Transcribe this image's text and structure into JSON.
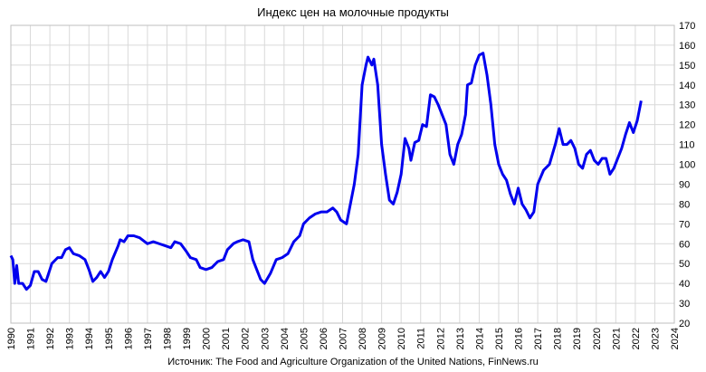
{
  "chart_data": {
    "type": "line",
    "title": "Индекс цен на молочные продукты",
    "source": "Источник: The Food and Agriculture Organization of the United Nations, FinNews.ru",
    "x": [
      1990.0,
      1990.1,
      1990.2,
      1990.3,
      1990.4,
      1990.6,
      1990.8,
      1991.0,
      1991.2,
      1991.4,
      1991.6,
      1991.8,
      1991.9,
      1992.1,
      1992.4,
      1992.6,
      1992.8,
      1993.0,
      1993.2,
      1993.5,
      1993.8,
      1994.0,
      1994.2,
      1994.4,
      1994.6,
      1994.8,
      1995.0,
      1995.2,
      1995.5,
      1995.6,
      1995.8,
      1996.0,
      1996.3,
      1996.6,
      1997.0,
      1997.3,
      1997.6,
      1997.9,
      1998.2,
      1998.4,
      1998.7,
      1999.0,
      1999.2,
      1999.5,
      1999.7,
      2000.0,
      2000.3,
      2000.6,
      2000.9,
      2001.1,
      2001.4,
      2001.6,
      2001.9,
      2002.2,
      2002.4,
      2002.6,
      2002.8,
      2003.0,
      2003.3,
      2003.6,
      2003.9,
      2004.2,
      2004.5,
      2004.8,
      2005.0,
      2005.3,
      2005.6,
      2005.9,
      2006.2,
      2006.5,
      2006.7,
      2006.9,
      2007.2,
      2007.4,
      2007.6,
      2007.8,
      2008.0,
      2008.2,
      2008.3,
      2008.5,
      2008.6,
      2008.8,
      2009.0,
      2009.2,
      2009.4,
      2009.6,
      2009.8,
      2010.0,
      2010.2,
      2010.4,
      2010.5,
      2010.7,
      2010.9,
      2011.1,
      2011.3,
      2011.5,
      2011.7,
      2011.9,
      2012.1,
      2012.3,
      2012.5,
      2012.7,
      2012.9,
      2013.1,
      2013.3,
      2013.4,
      2013.6,
      2013.8,
      2014.0,
      2014.2,
      2014.4,
      2014.6,
      2014.8,
      2015.0,
      2015.2,
      2015.4,
      2015.6,
      2015.8,
      2016.0,
      2016.2,
      2016.4,
      2016.6,
      2016.8,
      2017.0,
      2017.3,
      2017.6,
      2017.9,
      2018.1,
      2018.3,
      2018.5,
      2018.7,
      2018.9,
      2019.1,
      2019.3,
      2019.5,
      2019.7,
      2019.9,
      2020.1,
      2020.3,
      2020.5,
      2020.7,
      2020.9,
      2021.1,
      2021.3,
      2021.5,
      2021.7,
      2021.9,
      2022.1,
      2022.3
    ],
    "series": [
      {
        "name": "Индекс",
        "color": "#0000ee",
        "values": [
          54,
          52,
          40,
          49,
          40,
          40,
          37,
          39,
          46,
          46,
          42,
          41,
          44,
          50,
          53,
          53,
          57,
          58,
          55,
          54,
          52,
          47,
          41,
          43,
          46,
          43,
          46,
          52,
          59,
          62,
          61,
          64,
          64,
          63,
          60,
          61,
          60,
          59,
          58,
          61,
          60,
          56,
          53,
          52,
          48,
          47,
          48,
          51,
          52,
          57,
          60,
          61,
          62,
          61,
          52,
          47,
          42,
          40,
          45,
          52,
          53,
          55,
          61,
          64,
          70,
          73,
          75,
          76,
          76,
          78,
          76,
          72,
          70,
          80,
          90,
          105,
          140,
          150,
          154,
          150,
          153,
          140,
          110,
          95,
          82,
          80,
          86,
          95,
          113,
          108,
          102,
          111,
          112,
          120,
          119,
          135,
          134,
          130,
          125,
          120,
          105,
          100,
          110,
          115,
          125,
          140,
          141,
          150,
          155,
          156,
          145,
          130,
          110,
          100,
          95,
          92,
          85,
          80,
          88,
          80,
          77,
          73,
          76,
          90,
          97,
          100,
          110,
          118,
          110,
          110,
          112,
          108,
          100,
          98,
          105,
          107,
          102,
          100,
          103,
          103,
          95,
          98,
          103,
          108,
          115,
          121,
          116,
          122,
          132
        ]
      }
    ],
    "xlim": [
      1990,
      2024
    ],
    "xticks": [
      1990,
      1991,
      1992,
      1993,
      1994,
      1995,
      1996,
      1997,
      1998,
      1999,
      2000,
      2001,
      2002,
      2003,
      2004,
      2005,
      2006,
      2007,
      2008,
      2009,
      2010,
      2011,
      2012,
      2013,
      2014,
      2015,
      2016,
      2017,
      2018,
      2019,
      2020,
      2021,
      2022,
      2023,
      2024
    ],
    "ylim": [
      20,
      170
    ],
    "yticks": [
      20,
      30,
      40,
      50,
      60,
      70,
      80,
      90,
      100,
      110,
      120,
      130,
      140,
      150,
      160,
      170
    ],
    "grid": true
  }
}
